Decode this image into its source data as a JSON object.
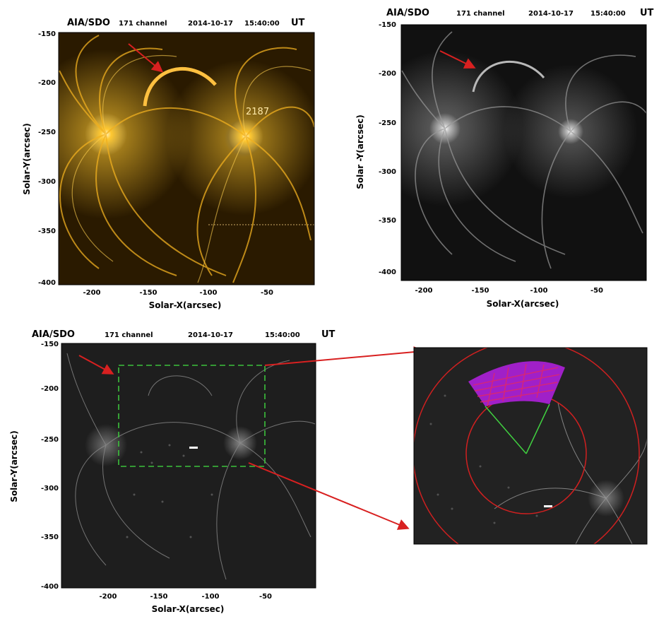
{
  "panel_a": {
    "title_left": "AIA/SDO",
    "title_channel": "171 channel",
    "title_date": "2014-10-17",
    "title_time": "15:40:00",
    "title_ut": "UT",
    "overlay_label": "2187",
    "xlabel": "Solar-X(arcsec)",
    "ylabel": "Solar-Y(arcsec)",
    "yticks": [
      "-150",
      "-200",
      "-250",
      "-300",
      "-350",
      "-400"
    ],
    "xticks": [
      "-200",
      "-150",
      "-100",
      "-50"
    ],
    "colormap": "#e8a400"
  },
  "panel_b": {
    "title_left": "AIA/SDO",
    "title_channel": "171 channel",
    "title_date": "2014-10-17",
    "title_time": "15:40:00",
    "title_ut": "UT",
    "xlabel": "Solar-X(arcsec)",
    "ylabel": "Solar -Y(arcsec)",
    "yticks": [
      "-150",
      "-200",
      "-250",
      "-300",
      "-350",
      "-400"
    ],
    "xticks": [
      "-200",
      "-150",
      "-100",
      "-50"
    ]
  },
  "panel_c": {
    "title_left": "AIA/SDO",
    "title_channel": "171 channel",
    "title_date": "2014-10-17",
    "title_time": "15:40:00",
    "title_ut": "UT",
    "xlabel": "Solar-X(arcsec)",
    "ylabel": "Solar-Y(arcsec)",
    "yticks": [
      "-150",
      "-200",
      "-250",
      "-300",
      "-350",
      "-400"
    ],
    "xticks": [
      "-200",
      "-150",
      "-100",
      "-50"
    ],
    "box_color": "#3cc23c"
  },
  "panel_d": {
    "circle_color": "#d02020",
    "wedge_fill": "#a020c8",
    "wedge_dots": "#e02868",
    "wedge_lines": "#40d040"
  },
  "arrow_color": "#d82020"
}
